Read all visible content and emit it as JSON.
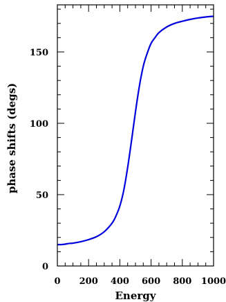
{
  "chart_data": {
    "type": "line",
    "title": "",
    "xlabel": "Energy",
    "ylabel": "phase shifts (degs)",
    "xlim": [
      0,
      1000
    ],
    "ylim": [
      0,
      183
    ],
    "x_ticks": [
      0,
      200,
      400,
      600,
      800,
      1000
    ],
    "y_ticks": [
      0,
      50,
      100,
      150
    ],
    "x_tick_labels": [
      "0",
      "200",
      "400",
      "600",
      "800",
      "1000"
    ],
    "y_tick_labels": [
      "0",
      "50",
      "100",
      "150"
    ],
    "grid": false,
    "legend": "none",
    "series": [
      {
        "color": "#0000dd",
        "x": [
          0,
          25,
          50,
          75,
          100,
          150,
          200,
          250,
          300,
          350,
          375,
          400,
          425,
          450,
          475,
          500,
          525,
          550,
          575,
          600,
          625,
          650,
          700,
          750,
          800,
          850,
          900,
          950,
          1000
        ],
        "y": [
          15,
          15,
          15.3,
          15.8,
          16,
          17,
          18.5,
          20.5,
          24,
          30,
          35,
          42,
          53,
          69,
          88,
          108,
          126,
          140,
          149,
          156,
          160,
          163.5,
          167.5,
          170,
          171.5,
          172.8,
          173.8,
          174.5,
          175
        ]
      }
    ]
  }
}
